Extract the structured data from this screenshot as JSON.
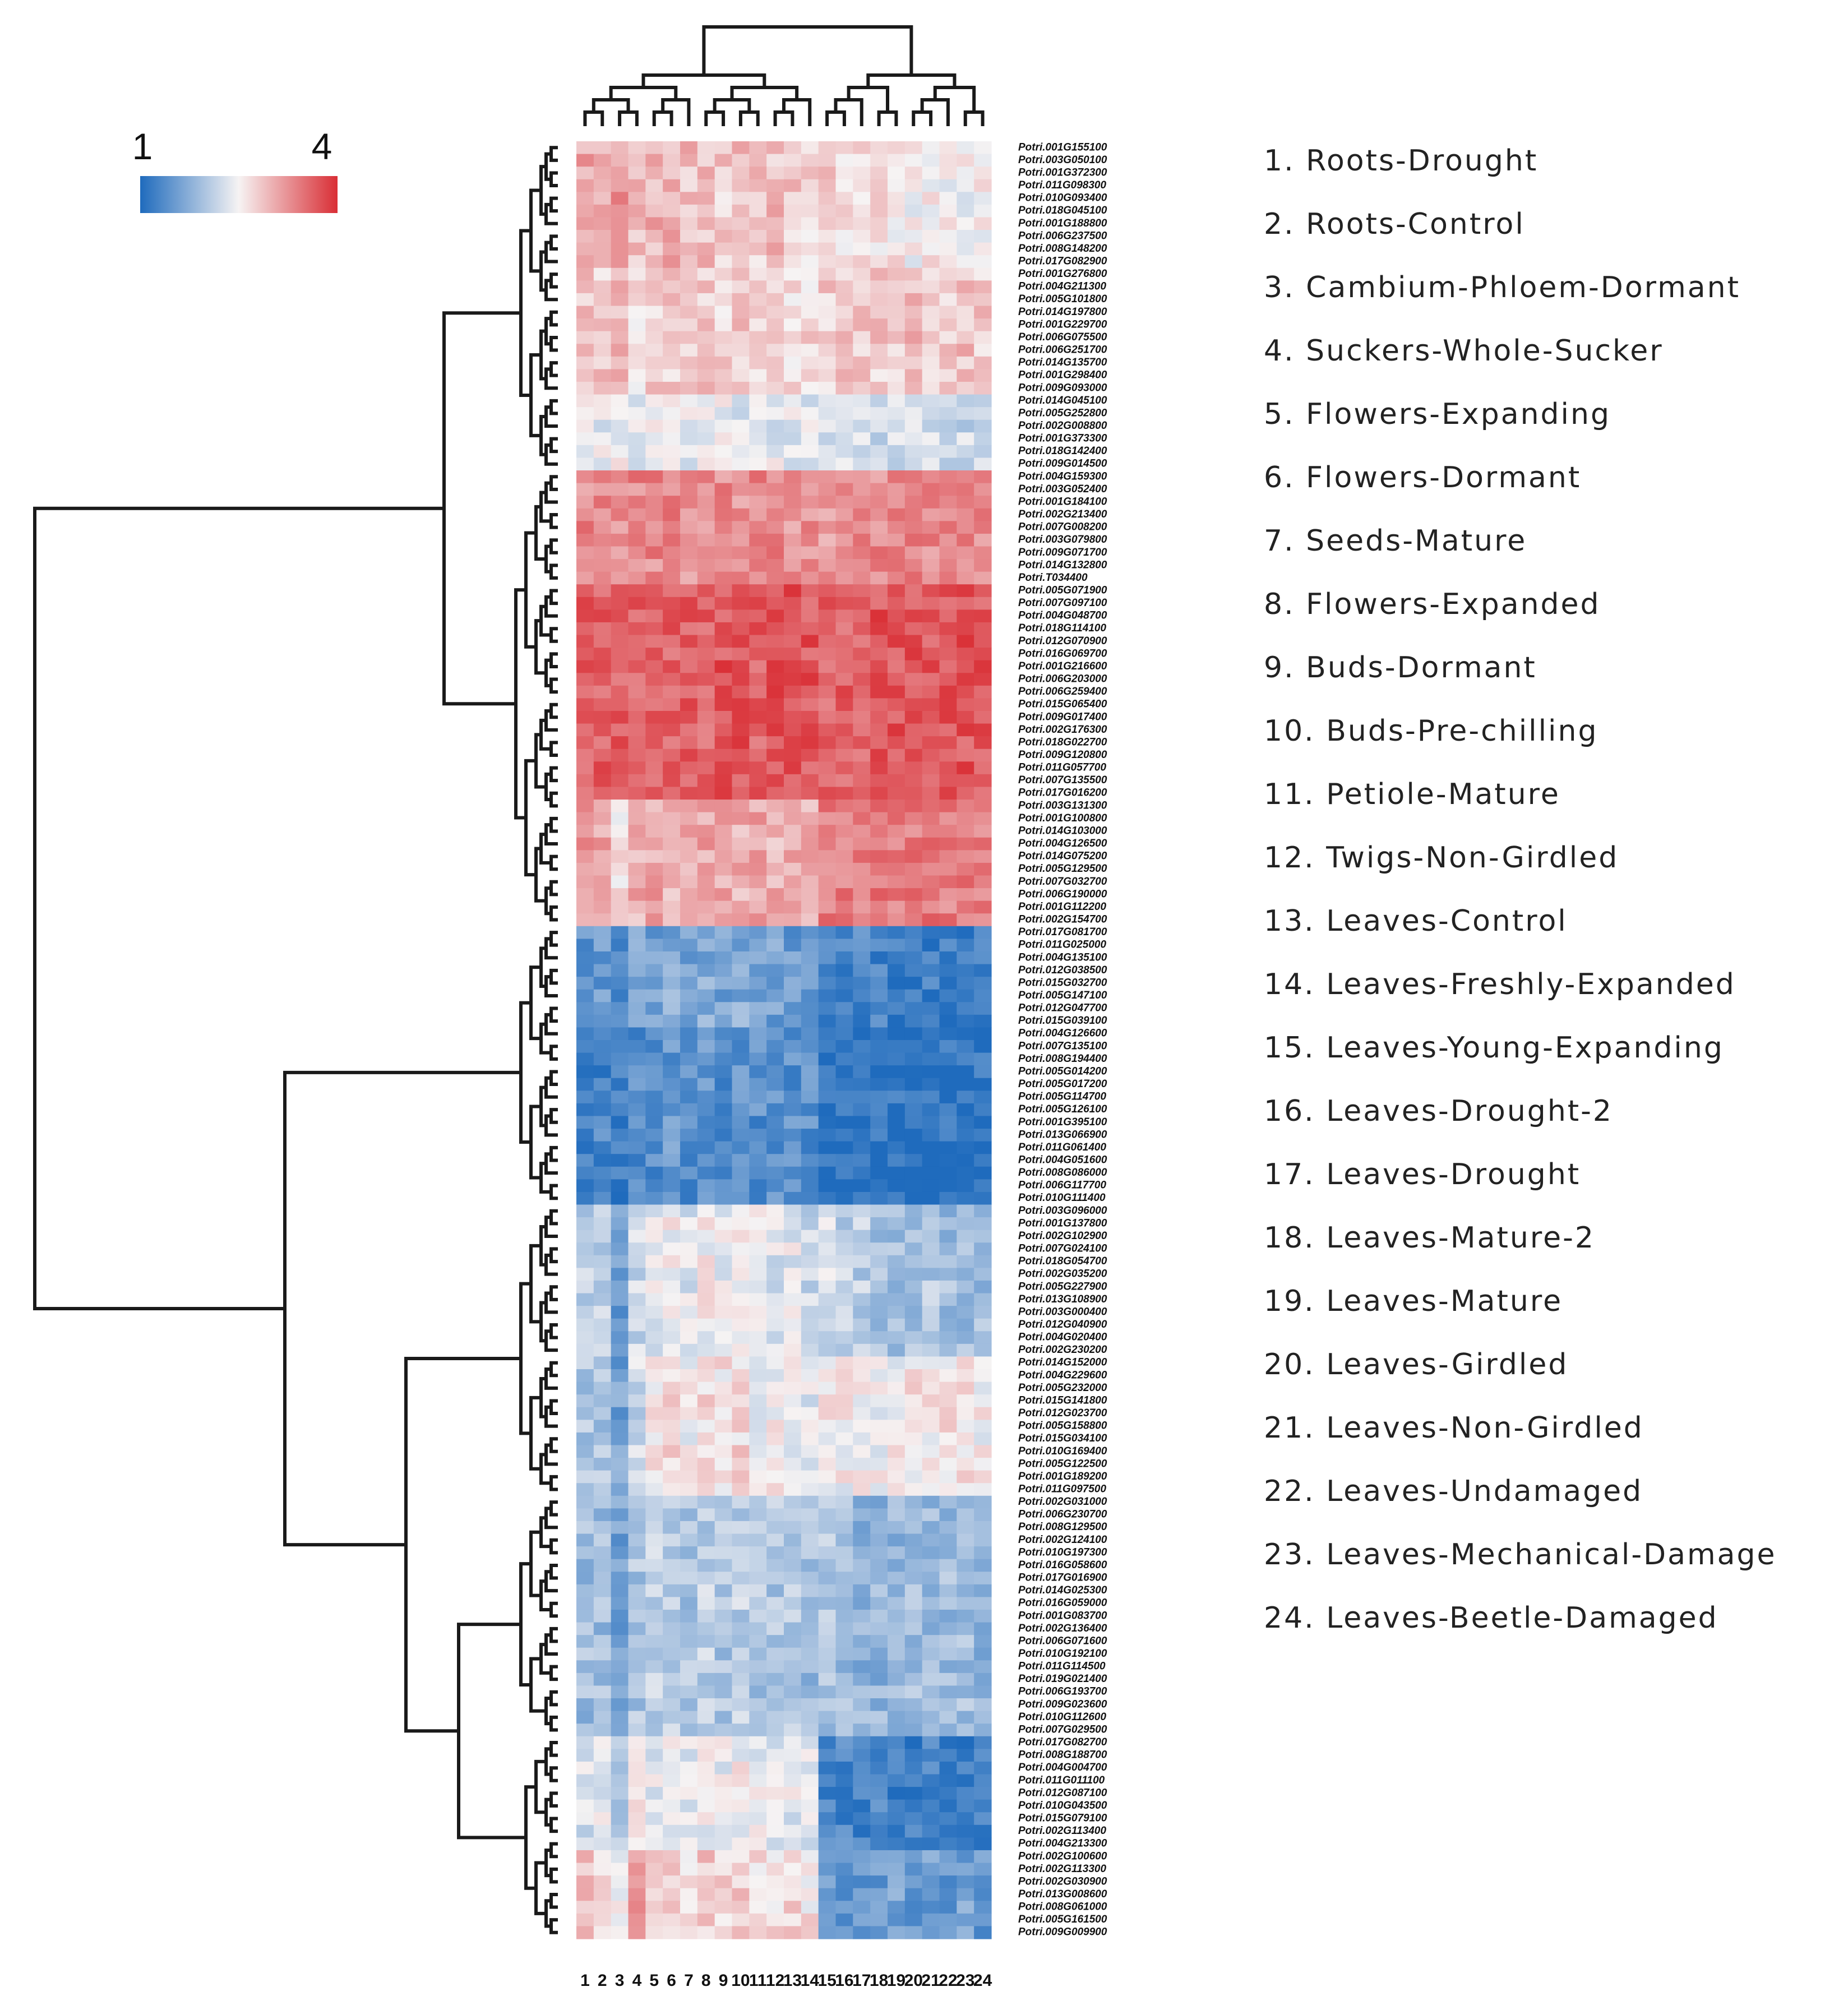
{
  "chart_data": {
    "type": "heatmap",
    "title": "",
    "colorbar": {
      "min_label": "1",
      "max_label": "4",
      "min": 1,
      "max": 4,
      "low_color": "#1f6bbd",
      "mid_color": "#f6f3f3",
      "high_color": "#d92e35"
    },
    "columns": [
      "1",
      "2",
      "3",
      "4",
      "5",
      "6",
      "7",
      "8",
      "9",
      "10",
      "11",
      "12",
      "13",
      "14",
      "15",
      "16",
      "17",
      "18",
      "19",
      "20",
      "21",
      "22",
      "23",
      "24"
    ],
    "column_legend": [
      "1. Roots-Drought",
      "2. Roots-Control",
      "3. Cambium-Phloem-Dormant",
      "4. Suckers-Whole-Sucker",
      "5. Flowers-Expanding",
      "6. Flowers-Dormant",
      "7. Seeds-Mature",
      "8. Flowers-Expanded",
      "9. Buds-Dormant",
      "10. Buds-Pre-chilling",
      "11. Petiole-Mature",
      "12. Twigs-Non-Girdled",
      "13. Leaves-Control",
      "14. Leaves-Freshly-Expanded",
      "15. Leaves-Young-Expanding",
      "16. Leaves-Drought-2",
      "17. Leaves-Drought",
      "18. Leaves-Mature-2",
      "19. Leaves-Mature",
      "20. Leaves-Girdled",
      "21. Leaves-Non-Girdled",
      "22. Leaves-Undamaged",
      "23. Leaves-Mechanical-Damage",
      "24. Leaves-Beetle-Damaged"
    ],
    "row_labels": [
      "Potri.001G155100",
      "Potri.003G050100",
      "Potri.001G372300",
      "Potri.011G098300",
      "Potri.010G093400",
      "Potri.018G045100",
      "Potri.001G188800",
      "Potri.006G237500",
      "Potri.008G148200",
      "Potri.017G082900",
      "Potri.001G276800",
      "Potri.004G211300",
      "Potri.005G101800",
      "Potri.014G197800",
      "Potri.001G229700",
      "Potri.006G075500",
      "Potri.006G251700",
      "Potri.014G135700",
      "Potri.001G298400",
      "Potri.009G093000",
      "Potri.014G045100",
      "Potri.005G252800",
      "Potri.002G008800",
      "Potri.001G373300",
      "Potri.018G142400",
      "Potri.009G014500",
      "Potri.004G159300",
      "Potri.003G052400",
      "Potri.001G184100",
      "Potri.002G213400",
      "Potri.007G008200",
      "Potri.003G079800",
      "Potri.009G071700",
      "Potri.014G132800",
      "Potri.T034400",
      "Potri.005G071900",
      "Potri.007G097100",
      "Potri.004G048700",
      "Potri.018G114100",
      "Potri.012G070900",
      "Potri.016G069700",
      "Potri.001G216600",
      "Potri.006G203000",
      "Potri.006G259400",
      "Potri.015G065400",
      "Potri.009G017400",
      "Potri.002G176300",
      "Potri.018G022700",
      "Potri.009G120800",
      "Potri.011G057700",
      "Potri.007G135500",
      "Potri.017G016200",
      "Potri.003G131300",
      "Potri.001G100800",
      "Potri.014G103000",
      "Potri.004G126500",
      "Potri.014G075200",
      "Potri.005G129500",
      "Potri.007G032700",
      "Potri.006G190000",
      "Potri.001G112200",
      "Potri.002G154700",
      "Potri.017G081700",
      "Potri.011G025000",
      "Potri.004G135100",
      "Potri.012G038500",
      "Potri.015G032700",
      "Potri.005G147100",
      "Potri.012G047700",
      "Potri.015G039100",
      "Potri.004G126600",
      "Potri.007G135100",
      "Potri.008G194400",
      "Potri.005G014200",
      "Potri.005G017200",
      "Potri.005G114700",
      "Potri.005G126100",
      "Potri.001G395100",
      "Potri.013G066900",
      "Potri.011G061400",
      "Potri.004G051600",
      "Potri.008G086000",
      "Potri.006G117700",
      "Potri.010G111400",
      "Potri.003G096000",
      "Potri.001G137800",
      "Potri.002G102900",
      "Potri.007G024100",
      "Potri.018G054700",
      "Potri.002G035200",
      "Potri.005G227900",
      "Potri.013G108900",
      "Potri.003G000400",
      "Potri.012G040900",
      "Potri.004G020400",
      "Potri.002G230200",
      "Potri.014G152000",
      "Potri.004G229600",
      "Potri.005G232000",
      "Potri.015G141800",
      "Potri.012G023700",
      "Potri.005G158800",
      "Potri.015G034100",
      "Potri.010G169400",
      "Potri.005G122500",
      "Potri.001G189200",
      "Potri.011G097500",
      "Potri.002G031000",
      "Potri.006G230700",
      "Potri.008G129500",
      "Potri.002G124100",
      "Potri.010G197300",
      "Potri.016G058600",
      "Potri.017G016900",
      "Potri.014G025300",
      "Potri.016G059000",
      "Potri.001G083700",
      "Potri.002G136400",
      "Potri.006G071600",
      "Potri.010G192100",
      "Potri.011G114500",
      "Potri.019G021400",
      "Potri.006G193700",
      "Potri.009G023600",
      "Potri.010G112600",
      "Potri.007G029500",
      "Potri.017G082700",
      "Potri.008G188700",
      "Potri.004G004700",
      "Potri.011G011100",
      "Potri.012G087100",
      "Potri.010G043500",
      "Potri.015G079100",
      "Potri.002G113400",
      "Potri.004G213300",
      "Potri.002G100600",
      "Potri.002G113300",
      "Potri.002G030900",
      "Potri.013G008600",
      "Potri.008G061000",
      "Potri.005G161500",
      "Potri.009G009900"
    ],
    "row_blocks": [
      {
        "rows": "1-10",
        "mean": [
          3.1,
          3.0,
          3.2,
          2.9,
          3.0,
          3.0,
          2.9,
          2.9,
          2.8,
          2.9,
          2.8,
          2.9,
          2.8,
          2.7,
          2.8,
          2.7,
          2.6,
          2.6,
          2.6,
          2.5,
          2.6,
          2.5,
          2.5,
          2.5
        ]
      },
      {
        "rows": "11-20",
        "mean": [
          2.8,
          2.8,
          2.9,
          2.7,
          2.8,
          2.8,
          2.7,
          2.8,
          2.7,
          2.8,
          2.7,
          2.7,
          2.7,
          2.7,
          2.8,
          2.8,
          2.8,
          2.8,
          2.8,
          2.9,
          2.8,
          2.8,
          2.9,
          2.8
        ]
      },
      {
        "rows": "21-26",
        "mean": [
          2.5,
          2.4,
          2.5,
          2.4,
          2.4,
          2.4,
          2.4,
          2.5,
          2.4,
          2.4,
          2.4,
          2.4,
          2.4,
          2.4,
          2.3,
          2.3,
          2.3,
          2.2,
          2.2,
          2.2,
          2.2,
          2.2,
          2.2,
          2.2
        ]
      },
      {
        "rows": "27-35",
        "mean": [
          3.3,
          3.3,
          3.3,
          3.3,
          3.3,
          3.3,
          3.2,
          3.3,
          3.3,
          3.2,
          3.3,
          3.3,
          3.2,
          3.3,
          3.2,
          3.2,
          3.3,
          3.3,
          3.3,
          3.3,
          3.3,
          3.3,
          3.3,
          3.3
        ]
      },
      {
        "rows": "36-52",
        "mean": [
          3.6,
          3.6,
          3.6,
          3.6,
          3.6,
          3.6,
          3.6,
          3.6,
          3.7,
          3.7,
          3.6,
          3.7,
          3.7,
          3.7,
          3.6,
          3.6,
          3.6,
          3.7,
          3.7,
          3.7,
          3.7,
          3.7,
          3.7,
          3.7
        ]
      },
      {
        "rows": "53-62",
        "mean": [
          3.2,
          3.1,
          2.6,
          3.0,
          3.1,
          3.0,
          3.0,
          3.1,
          3.1,
          3.0,
          3.1,
          3.0,
          3.0,
          3.0,
          3.4,
          3.4,
          3.4,
          3.4,
          3.4,
          3.4,
          3.4,
          3.4,
          3.4,
          3.4
        ]
      },
      {
        "rows": "63-70",
        "mean": [
          1.5,
          1.5,
          1.3,
          1.6,
          1.6,
          1.7,
          1.6,
          1.7,
          1.6,
          1.7,
          1.6,
          1.6,
          1.5,
          1.5,
          1.3,
          1.3,
          1.3,
          1.3,
          1.2,
          1.2,
          1.2,
          1.2,
          1.2,
          1.2
        ]
      },
      {
        "rows": "71-84",
        "mean": [
          1.3,
          1.3,
          1.2,
          1.4,
          1.4,
          1.5,
          1.4,
          1.5,
          1.4,
          1.5,
          1.4,
          1.4,
          1.4,
          1.4,
          1.1,
          1.1,
          1.1,
          1.1,
          1.1,
          1.1,
          1.1,
          1.1,
          1.1,
          1.1
        ]
      },
      {
        "rows": "85-96",
        "mean": [
          2.1,
          2.1,
          1.5,
          2.2,
          2.4,
          2.5,
          2.3,
          2.5,
          2.4,
          2.5,
          2.4,
          2.3,
          2.4,
          2.2,
          2.3,
          2.1,
          2.1,
          2.0,
          1.9,
          1.9,
          2.0,
          1.9,
          1.9,
          1.9
        ]
      },
      {
        "rows": "97-107",
        "mean": [
          2.0,
          2.0,
          1.6,
          2.2,
          2.6,
          2.7,
          2.5,
          2.7,
          2.6,
          2.7,
          2.5,
          2.5,
          2.5,
          2.4,
          2.6,
          2.5,
          2.5,
          2.5,
          2.5,
          2.6,
          2.6,
          2.6,
          2.6,
          2.5
        ]
      },
      {
        "rows": "108-126",
        "mean": [
          1.9,
          1.9,
          1.6,
          2.0,
          2.1,
          2.1,
          2.0,
          2.1,
          2.0,
          2.1,
          2.0,
          2.0,
          2.0,
          1.9,
          2.0,
          1.9,
          1.8,
          1.8,
          1.8,
          1.9,
          1.9,
          1.9,
          1.9,
          1.8
        ]
      },
      {
        "rows": "127-135",
        "mean": [
          2.3,
          2.4,
          2.1,
          2.5,
          2.4,
          2.5,
          2.4,
          2.5,
          2.4,
          2.5,
          2.4,
          2.4,
          2.4,
          2.3,
          1.3,
          1.3,
          1.3,
          1.3,
          1.2,
          1.2,
          1.3,
          1.2,
          1.2,
          1.2
        ]
      },
      {
        "rows": "136-142",
        "mean": [
          2.9,
          2.8,
          2.5,
          3.1,
          2.7,
          2.8,
          2.7,
          2.8,
          2.7,
          2.8,
          2.7,
          2.7,
          2.7,
          2.6,
          1.6,
          1.5,
          1.5,
          1.5,
          1.6,
          1.5,
          1.6,
          1.5,
          1.6,
          1.5
        ]
      }
    ],
    "column_dendrogram": {
      "groups": [
        [
          "1",
          "2",
          "3",
          "4",
          "5",
          "6",
          "7",
          "8",
          "9",
          "10",
          "11",
          "12",
          "13",
          "14"
        ],
        [
          "15",
          "16",
          "17",
          "18",
          "19",
          "20",
          "21",
          "22",
          "23",
          "24"
        ]
      ]
    },
    "row_dendrogram": {
      "major_clusters": [
        "1-62",
        "63-142"
      ]
    }
  }
}
